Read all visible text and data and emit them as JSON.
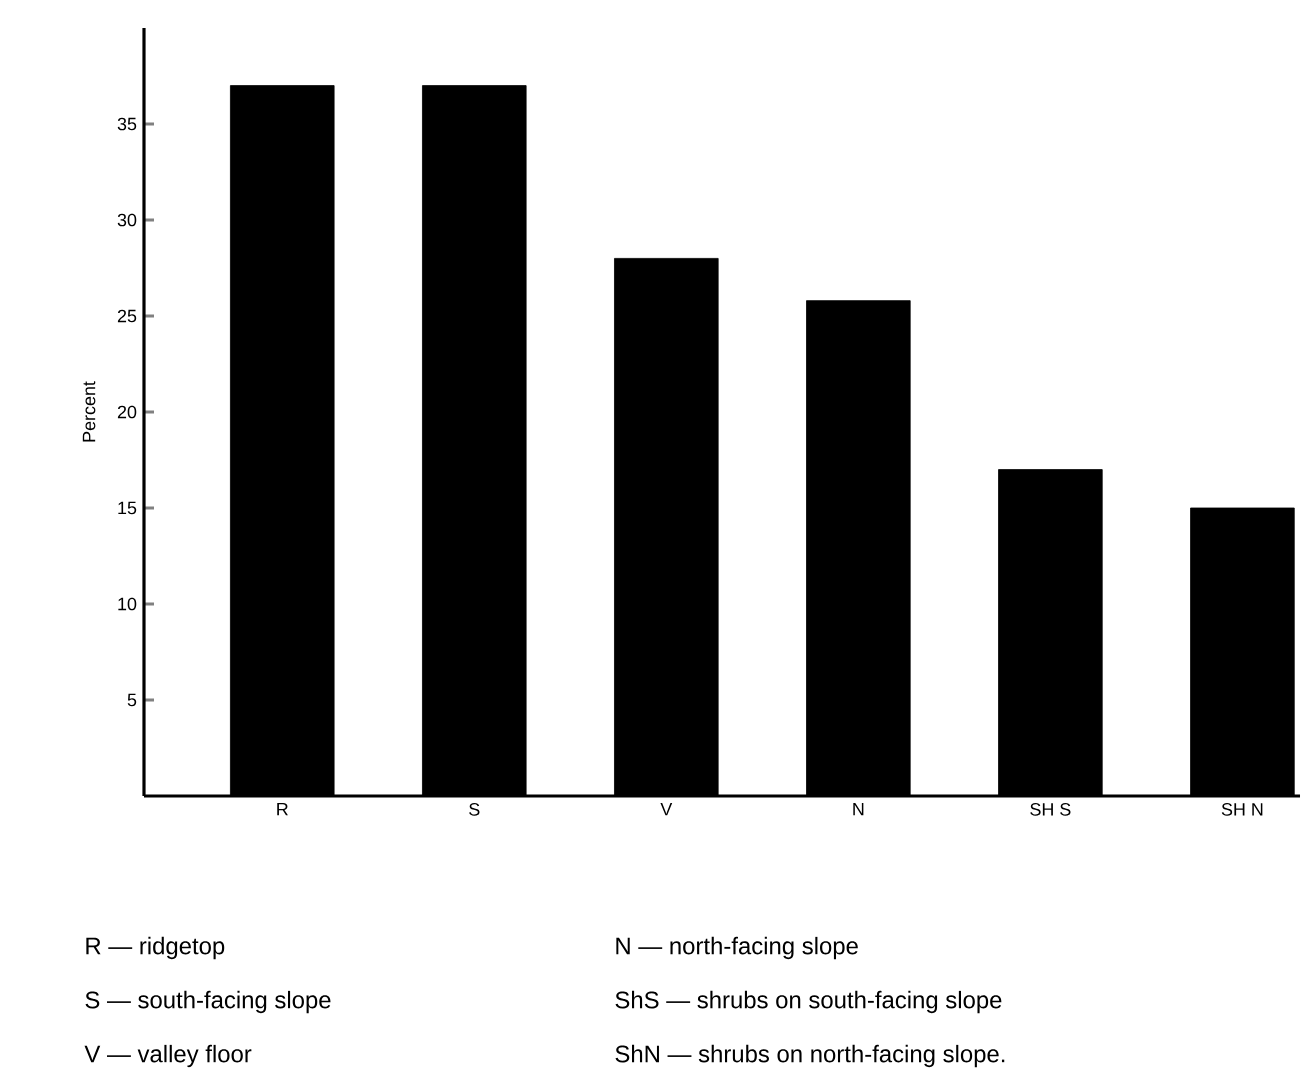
{
  "chart_data": {
    "type": "bar",
    "ylabel": "Percent",
    "categories": [
      "R",
      "S",
      "V",
      "N",
      "SH S",
      "SH N"
    ],
    "values": [
      37,
      37,
      28,
      25.8,
      17,
      15
    ],
    "color": "#000000",
    "ylim": [
      0,
      40
    ],
    "yticks": [
      5,
      10,
      15,
      20,
      25,
      30,
      35
    ],
    "annotations": [
      "R — ridgetop",
      "S — south-facing slope",
      "V — valley floor",
      "N — north-facing slope",
      "ShS — shrubs on south-facing slope",
      "ShN — shrubs on north-facing slope."
    ]
  }
}
